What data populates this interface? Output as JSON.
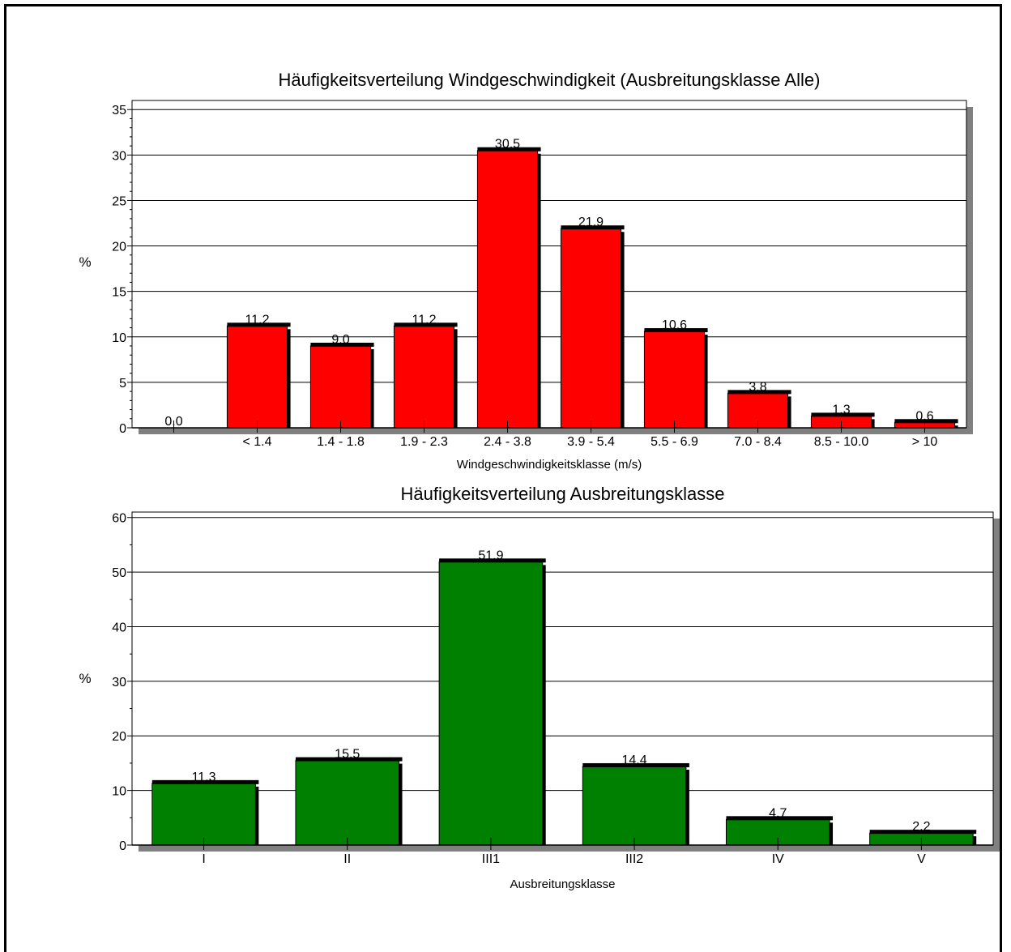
{
  "chart_data": [
    {
      "type": "bar",
      "title": "Häufigkeitsverteilung Windgeschwindigkeit (Ausbreitungsklasse Alle)",
      "xlabel": "Windgeschwindigkeitsklasse (m/s)",
      "ylabel": "%",
      "categories": [
        "",
        "< 1.4",
        "1.4 - 1.8",
        "1.9 - 2.3",
        "2.4 - 3.8",
        "3.9 - 5.4",
        "5.5 - 6.9",
        "7.0 - 8.4",
        "8.5 - 10.0",
        "> 10"
      ],
      "values": [
        0.0,
        11.2,
        9.0,
        11.2,
        30.5,
        21.9,
        10.6,
        3.8,
        1.3,
        0.6
      ],
      "data_labels": [
        "0.0",
        "11.2",
        "9.0",
        "11.2",
        "30.5",
        "21.9",
        "10.6",
        "3.8",
        "1.3",
        "0.6"
      ],
      "ylim": [
        0,
        36
      ],
      "yticks": [
        0,
        5,
        10,
        15,
        20,
        25,
        30,
        35
      ],
      "grid": true,
      "colors": {
        "bar": "#ff0000"
      }
    },
    {
      "type": "bar",
      "title": "Häufigkeitsverteilung Ausbreitungsklasse",
      "xlabel": "Ausbreitungsklasse",
      "ylabel": "%",
      "categories": [
        "I",
        "II",
        "III1",
        "III2",
        "IV",
        "V"
      ],
      "values": [
        11.3,
        15.5,
        51.9,
        14.4,
        4.7,
        2.2
      ],
      "data_labels": [
        "11.3",
        "15.5",
        "51.9",
        "14.4",
        "4.7",
        "2.2"
      ],
      "ylim": [
        0,
        61
      ],
      "yticks": [
        0,
        10,
        20,
        30,
        40,
        50,
        60
      ],
      "grid": true,
      "colors": {
        "bar": "#008000"
      }
    }
  ]
}
